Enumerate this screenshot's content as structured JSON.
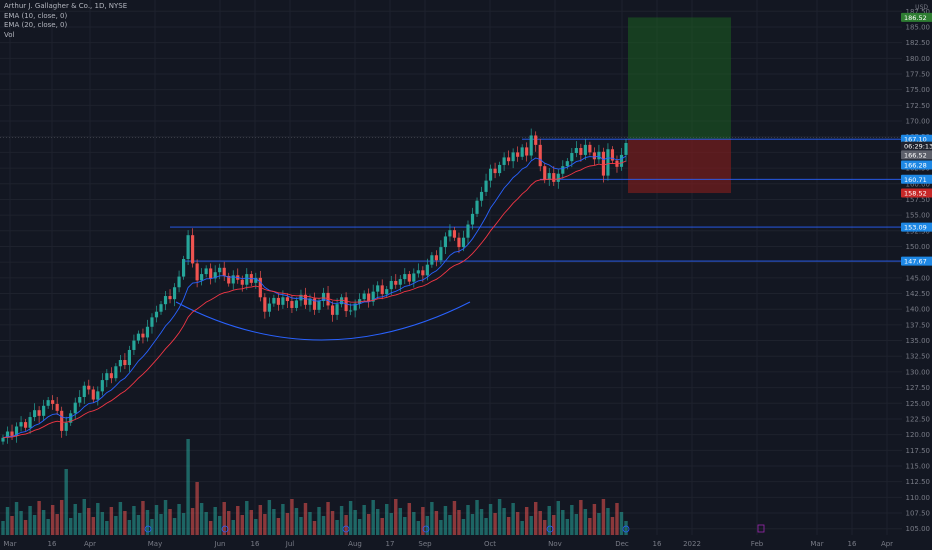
{
  "header": {
    "symbol_line": "Arthur J. Gallagher & Co., 1D, NYSE",
    "indicators": [
      "EMA (10, close, 0)",
      "EMA (20, close, 0)",
      "Vol"
    ]
  },
  "colors": {
    "background": "#131722",
    "up": "#26a69a",
    "down": "#ef5350",
    "ema10": "#2962ff",
    "ema20": "#f23645",
    "level_line": "#2962ff",
    "profit_zone": "#1b5e20",
    "loss_zone": "#7f1d1d",
    "grid": "#1e222d",
    "axis_text": "#787b86"
  },
  "axis_badges": {
    "currency": "USD",
    "target": "186.52",
    "entry": "167.10",
    "countdown": "06:29:13",
    "last_price": "166.52",
    "ema10": "166.28",
    "support_1": "160.71",
    "stop": "158.52",
    "support_2": "153.09",
    "support_3": "147.67"
  },
  "chart_data": {
    "type": "candlestick",
    "instrument": "Arthur J. Gallagher & Co., 1D, NYSE",
    "y_range": [
      104,
      188.5
    ],
    "y_ticks": [
      "187.50",
      "185.00",
      "182.50",
      "180.00",
      "177.50",
      "175.00",
      "172.50",
      "170.00",
      "167.50",
      "165.00",
      "162.50",
      "160.00",
      "157.50",
      "155.00",
      "152.50",
      "150.00",
      "147.50",
      "145.00",
      "142.50",
      "140.00",
      "137.50",
      "135.00",
      "132.50",
      "130.00",
      "127.50",
      "125.00",
      "122.50",
      "120.00",
      "117.50",
      "115.00",
      "112.50",
      "110.00",
      "107.50",
      "105.00"
    ],
    "x_ticks": [
      "Mar",
      "16",
      "Apr",
      "May",
      "Jun",
      "16",
      "Jul",
      "Aug",
      "17",
      "Sep",
      "Oct",
      "Nov",
      "Dec",
      "16",
      "2022",
      "Feb",
      "Mar",
      "16",
      "Apr"
    ],
    "series": [
      {
        "name": "EMA (10, close, 0)"
      },
      {
        "name": "EMA (20, close, 0)"
      },
      {
        "name": "Vol"
      }
    ],
    "horizontal_levels": [
      167.1,
      160.71,
      153.09,
      147.67
    ],
    "position": {
      "entry": 167.1,
      "target": 186.52,
      "stop": 158.52
    },
    "closes": [
      119.5,
      120.5,
      119.8,
      121.3,
      122.0,
      121.1,
      122.8,
      123.9,
      123.0,
      124.6,
      125.5,
      124.9,
      123.8,
      120.6,
      121.9,
      123.4,
      125.1,
      126.0,
      127.8,
      127.2,
      125.6,
      126.9,
      128.7,
      129.8,
      129.0,
      130.9,
      131.9,
      131.1,
      133.5,
      135.0,
      136.1,
      135.5,
      137.2,
      138.7,
      139.6,
      140.8,
      142.1,
      141.6,
      143.5,
      145.2,
      148.0,
      151.8,
      147.3,
      144.6,
      145.6,
      146.5,
      144.9,
      145.9,
      146.6,
      145.3,
      144.1,
      145.4,
      144.7,
      143.9,
      145.6,
      144.2,
      145.0,
      141.9,
      139.6,
      140.9,
      141.8,
      140.7,
      141.9,
      141.3,
      140.2,
      141.4,
      142.3,
      140.7,
      141.7,
      139.9,
      141.3,
      142.6,
      140.6,
      139.1,
      140.8,
      141.9,
      139.7,
      139.8,
      140.9,
      141.6,
      142.5,
      141.2,
      142.8,
      143.8,
      142.4,
      143.2,
      144.5,
      143.9,
      144.8,
      145.6,
      144.4,
      145.7,
      146.2,
      145.4,
      147.1,
      148.6,
      147.8,
      149.9,
      151.6,
      152.6,
      151.4,
      149.9,
      151.4,
      153.5,
      155.2,
      157.3,
      158.7,
      160.5,
      162.4,
      161.7,
      163.0,
      164.2,
      163.6,
      165.0,
      164.3,
      165.8,
      164.5,
      167.7,
      166.2,
      162.8,
      160.6,
      161.7,
      160.3,
      161.6,
      162.8,
      163.6,
      164.9,
      165.7,
      164.6,
      166.2,
      165.0,
      163.9,
      165.1,
      161.3,
      165.5,
      163.7,
      162.7,
      164.6,
      166.5
    ]
  }
}
